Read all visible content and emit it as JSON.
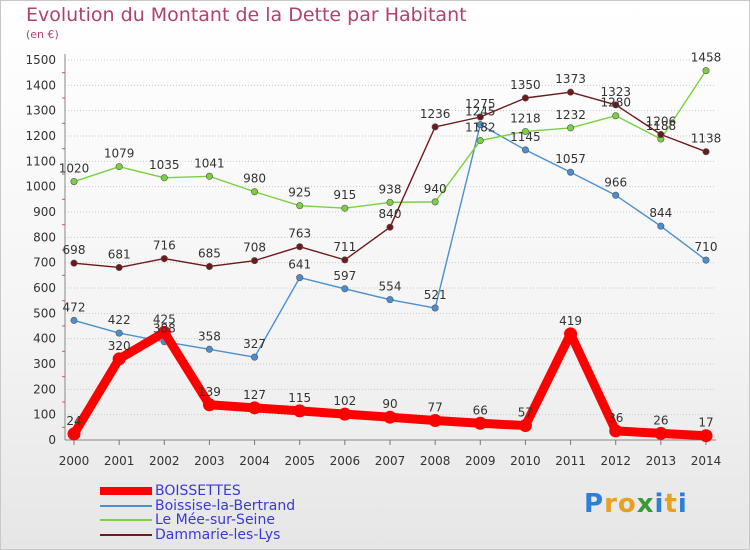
{
  "header": {
    "title": "Evolution du Montant de la Dette par Habitant",
    "subtitle": "(en €)"
  },
  "logo": {
    "text": "Proxiti",
    "colors": [
      "#2a7fd6",
      "#e8a020",
      "#e8a020",
      "#3a9a3a",
      "#2a7fd6",
      "#e8a020",
      "#2a7fd6"
    ]
  },
  "chart_data": {
    "type": "line",
    "title": "Evolution du Montant de la Dette par Habitant",
    "subtitle": "(en €)",
    "x": [
      "2000",
      "2001",
      "2002",
      "2003",
      "2004",
      "2005",
      "2006",
      "2007",
      "2008",
      "2009",
      "2010",
      "2011",
      "2012",
      "2013",
      "2014"
    ],
    "y_ticks": [
      "0",
      "100",
      "200",
      "300",
      "400",
      "500",
      "600",
      "700",
      "800",
      "900",
      "1000",
      "1100",
      "1200",
      "1300",
      "1400",
      "1500"
    ],
    "ylim": [
      0,
      1500
    ],
    "grid": "horizontal dotted",
    "legend_position": "bottom-left",
    "series": [
      {
        "name": "BOISSETTES",
        "color": "#ff0000",
        "emphasis": true,
        "values": [
          24,
          320,
          425,
          139,
          127,
          115,
          102,
          90,
          77,
          66,
          57,
          419,
          36,
          26,
          17
        ],
        "labels": [
          "24",
          "320",
          "425",
          "139",
          "127",
          "115",
          "102",
          "90",
          "77",
          "66",
          "57",
          "419",
          "36",
          "26",
          "17"
        ]
      },
      {
        "name": "Boissise-la-Bertrand",
        "color": "#4a90d0",
        "values": [
          472,
          422,
          388,
          358,
          327,
          641,
          597,
          554,
          521,
          1245,
          1145,
          1057,
          966,
          844,
          710
        ],
        "labels": [
          "472",
          "422",
          "388",
          "358",
          "327",
          "641",
          "597",
          "554",
          "521",
          "1245",
          "1145",
          "1057",
          "966",
          "844",
          "710"
        ]
      },
      {
        "name": "Le Mée-sur-Seine",
        "color": "#7ad040",
        "values": [
          1020,
          1079,
          1035,
          1041,
          980,
          925,
          915,
          938,
          940,
          1182,
          1218,
          1232,
          1280,
          1188,
          1458
        ],
        "labels": [
          "1020",
          "1079",
          "1035",
          "1041",
          "980",
          "925",
          "915",
          "938",
          "940",
          "1182",
          "1218",
          "1232",
          "1280",
          "1188",
          "1458"
        ]
      },
      {
        "name": "Dammarie-les-Lys",
        "color": "#6e1a1a",
        "values": [
          698,
          681,
          716,
          685,
          708,
          763,
          711,
          840,
          1236,
          1275,
          1350,
          1373,
          1323,
          1206,
          1138
        ],
        "labels": [
          "698",
          "681",
          "716",
          "685",
          "708",
          "763",
          "711",
          "840",
          "1236",
          "1275",
          "1350",
          "1373",
          "1323",
          "1206",
          "1138"
        ]
      }
    ]
  }
}
